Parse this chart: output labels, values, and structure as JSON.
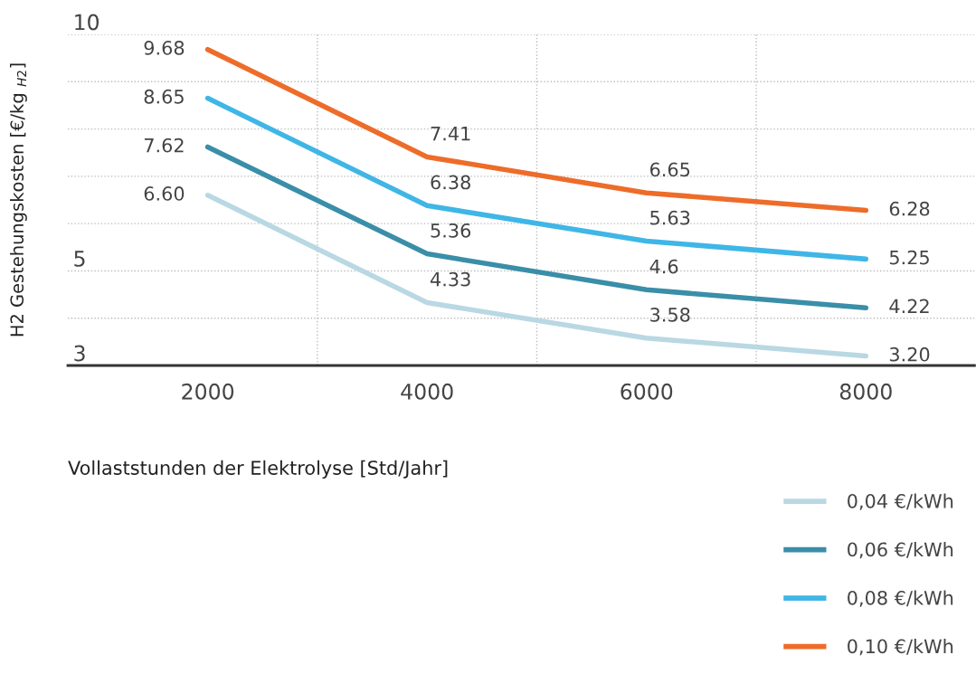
{
  "chart_data": {
    "type": "line",
    "xlabel": "Vollaststunden der Elektrolyse [Std/Jahr]",
    "ylabel": "H2 Gestehungskosten [€/kg $_{H2}$]",
    "x": [
      2000,
      4000,
      6000,
      8000
    ],
    "series": [
      {
        "name": "0,04 €/kWh",
        "color": "#b9d8e3",
        "values": [
          6.6,
          4.33,
          3.58,
          3.2
        ],
        "value_labels": [
          "6.60",
          "4.33",
          "3.58",
          "3.20"
        ]
      },
      {
        "name": "0,06 €/kWh",
        "color": "#3a8ea8",
        "values": [
          7.62,
          5.36,
          4.6,
          4.22
        ],
        "value_labels": [
          "7.62",
          "5.36",
          "4.6",
          "4.22"
        ]
      },
      {
        "name": "0,08 €/kWh",
        "color": "#3fb6e6",
        "values": [
          8.65,
          6.38,
          5.63,
          5.25
        ],
        "value_labels": [
          "8.65",
          "6.38",
          "5.63",
          "5.25"
        ]
      },
      {
        "name": "0,10 €/kWh",
        "color": "#ee6c2a",
        "values": [
          9.68,
          7.41,
          6.65,
          6.28
        ],
        "value_labels": [
          "9.68",
          "7.41",
          "6.65",
          "6.28"
        ]
      }
    ],
    "xlim": [
      725,
      8990
    ],
    "xticks": [
      2000,
      4000,
      6000,
      8000
    ],
    "ylim": [
      3,
      10
    ],
    "yticks": [
      3,
      {
        "value": 4,
        "label": null
      },
      5,
      {
        "value": 6,
        "label": null
      },
      {
        "value": 7,
        "label": null
      },
      {
        "value": 8,
        "label": null
      },
      {
        "value": 9,
        "label": null
      },
      10
    ],
    "grid": "y",
    "legend": "bottom right",
    "marker": "none",
    "line_style": "solid",
    "ref_lines": [
      {
        "axis": "x",
        "value": 3000,
        "color": "#bbbbbb",
        "line_style": "dotted"
      },
      {
        "axis": "x",
        "value": 5000,
        "color": "#bbbbbb",
        "line_style": "dotted"
      },
      {
        "axis": "x",
        "value": 7000,
        "color": "#bbbbbb",
        "line_style": "dotted"
      }
    ]
  }
}
